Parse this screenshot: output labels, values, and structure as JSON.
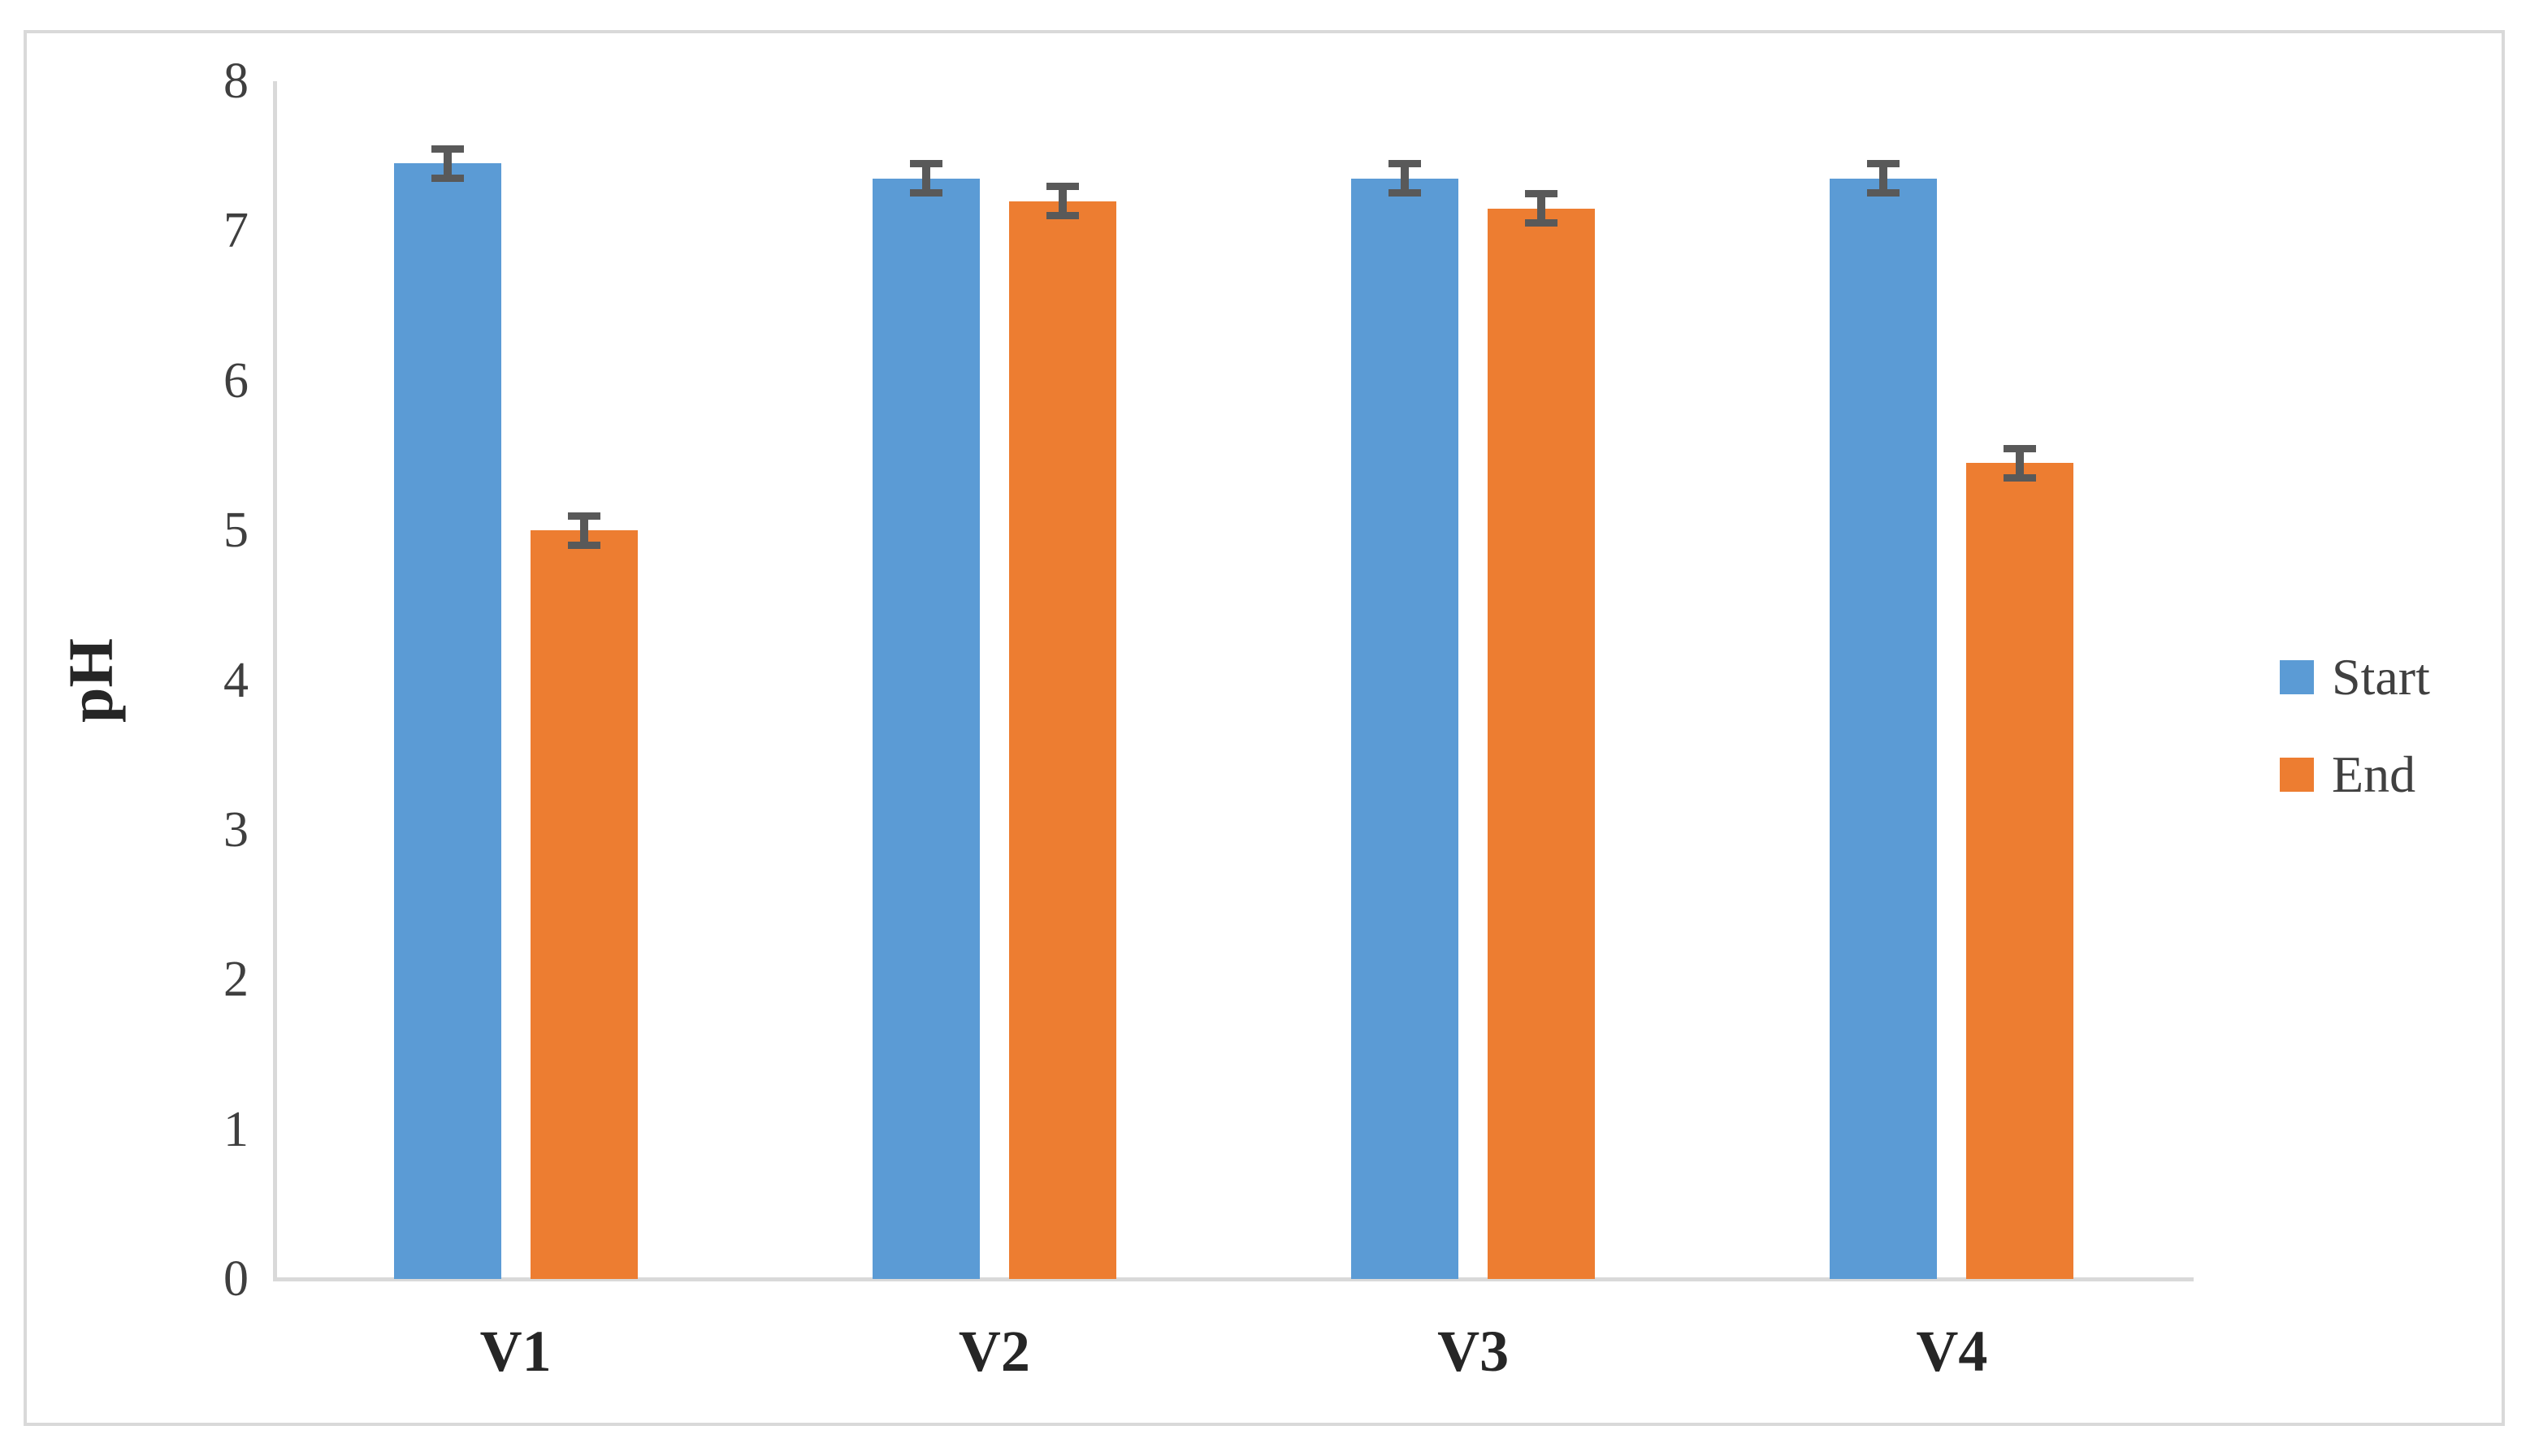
{
  "chart_data": {
    "type": "bar",
    "categories": [
      "V1",
      "V2",
      "V3",
      "V4"
    ],
    "series": [
      {
        "name": "Start",
        "color": "#5B9BD5",
        "values": [
          7.45,
          7.35,
          7.35,
          7.35
        ],
        "errors": [
          0.1,
          0.1,
          0.1,
          0.1
        ]
      },
      {
        "name": "End",
        "color": "#ED7D31",
        "values": [
          5.0,
          7.2,
          7.15,
          5.45
        ],
        "errors": [
          0.1,
          0.1,
          0.1,
          0.1
        ]
      }
    ],
    "title": "",
    "xlabel": "",
    "ylabel": "pH",
    "ylim": [
      0,
      8
    ],
    "yticks": [
      0,
      1,
      2,
      3,
      4,
      5,
      6,
      7,
      8
    ],
    "grid": false,
    "error_bars": true,
    "error_bar_color": "#595959",
    "legend_position": "right",
    "legend_entries": [
      "Start",
      "End"
    ]
  }
}
